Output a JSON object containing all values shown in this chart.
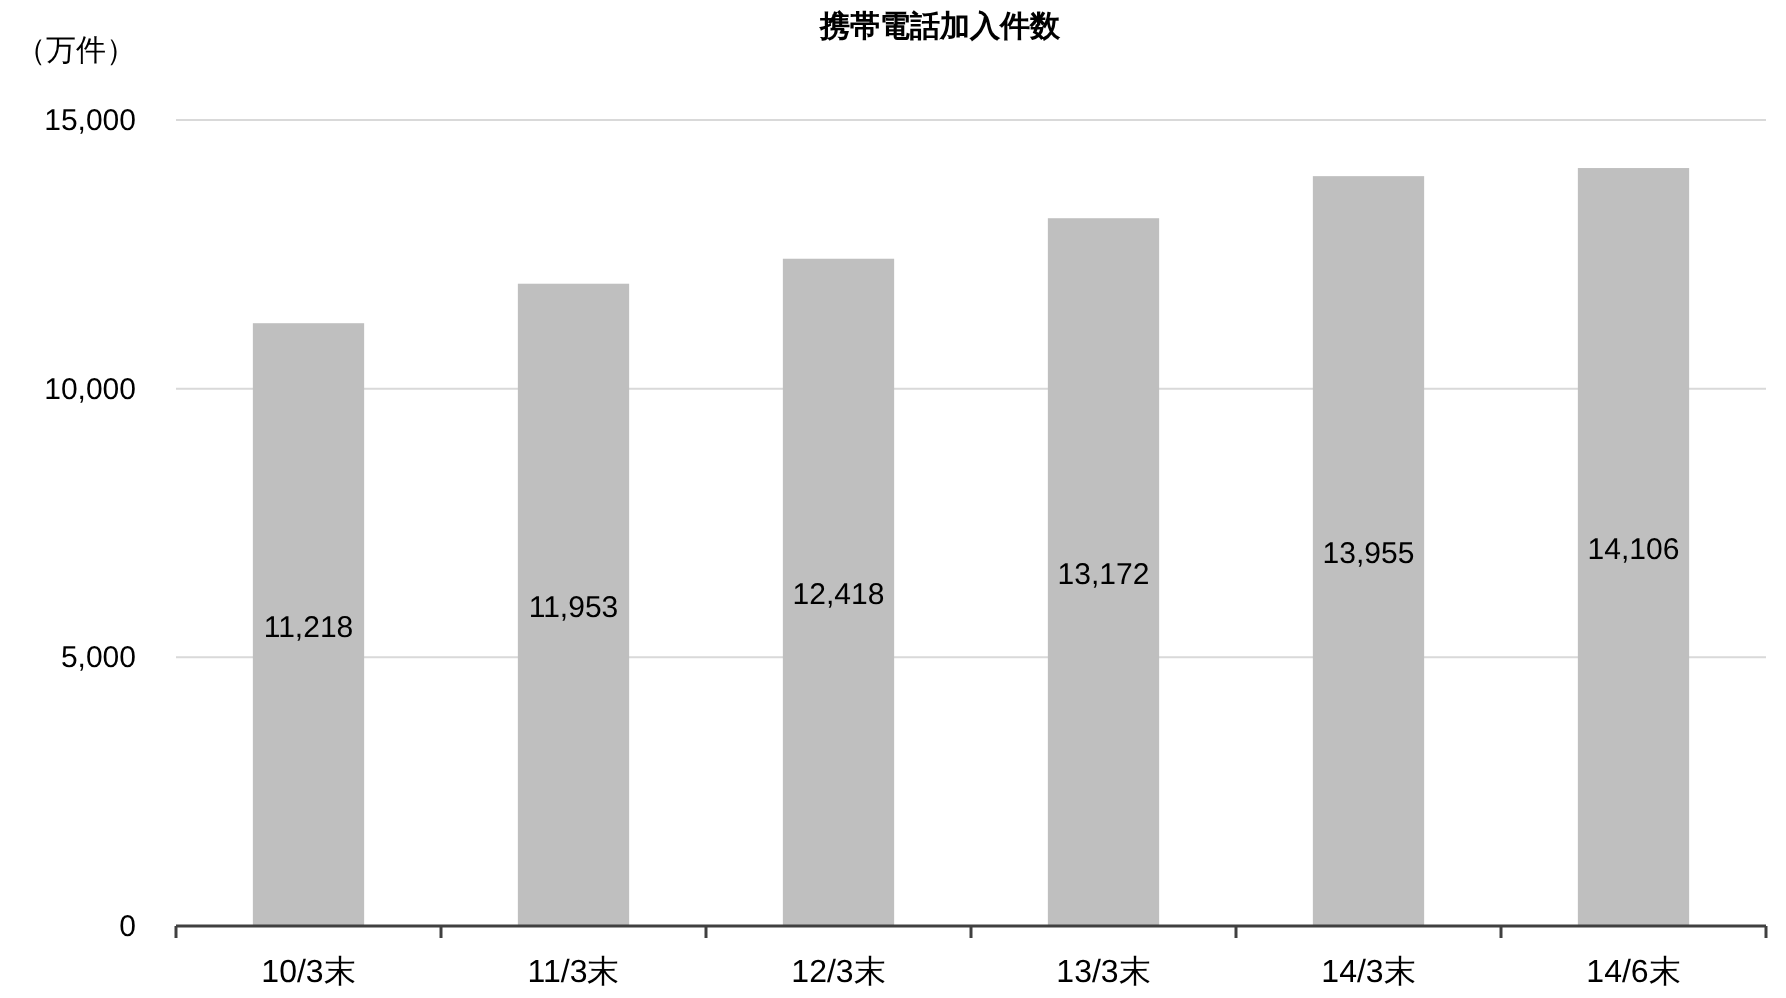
{
  "chart_data": {
    "type": "bar",
    "title": "携帯電話加入件数",
    "ylabel": "（万件）",
    "categories": [
      "10/3末",
      "11/3末",
      "12/3末",
      "13/3末",
      "14/3末",
      "14/6末"
    ],
    "values": [
      11218,
      11953,
      12418,
      13172,
      13955,
      14106
    ],
    "color": "#bfbfbf",
    "ylim": [
      0,
      15000
    ],
    "yticks": [
      {
        "value": 0,
        "label": "0"
      },
      {
        "value": 5000,
        "label": "5,000"
      },
      {
        "value": 10000,
        "label": "10,000"
      },
      {
        "value": 15000,
        "label": "15,000"
      }
    ],
    "grid": "y",
    "value_labels": [
      "11,218",
      "11,953",
      "12,418",
      "13,172",
      "13,955",
      "14,106"
    ]
  }
}
